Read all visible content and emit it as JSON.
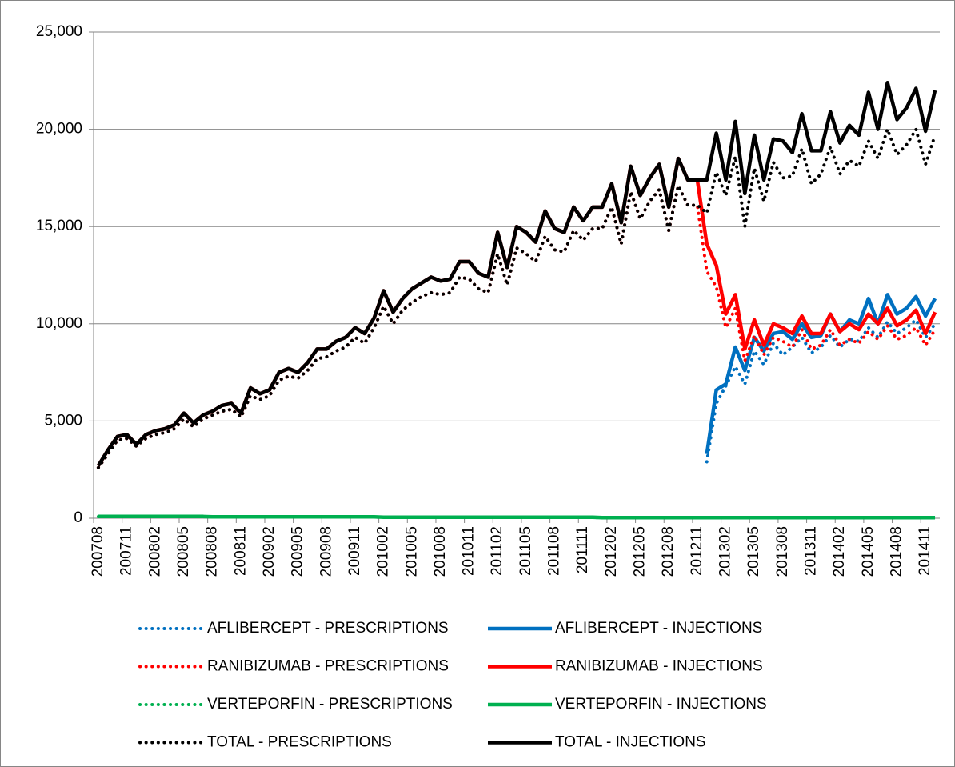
{
  "chart_data": {
    "type": "line",
    "categories": [
      "200708",
      null,
      null,
      "200711",
      null,
      null,
      "200802",
      null,
      null,
      "200805",
      null,
      null,
      "200808",
      null,
      null,
      "200811",
      null,
      null,
      "200902",
      null,
      null,
      "200905",
      null,
      null,
      "200908",
      null,
      null,
      "200911",
      null,
      null,
      "201002",
      null,
      null,
      "201005",
      null,
      null,
      "201008",
      null,
      null,
      "201011",
      null,
      null,
      "201102",
      null,
      null,
      "201105",
      null,
      null,
      "201108",
      null,
      null,
      "201111",
      null,
      null,
      "201202",
      null,
      null,
      "201205",
      null,
      null,
      "201208",
      null,
      null,
      "201211",
      null,
      null,
      "201302",
      null,
      null,
      "201305",
      null,
      null,
      "201308",
      null,
      null,
      "201311",
      null,
      null,
      "201402",
      null,
      null,
      "201405",
      null,
      null,
      "201408",
      null,
      null,
      "201411",
      null
    ],
    "ylim": [
      0,
      25000
    ],
    "yticks": [
      0,
      {
        "value": 5000,
        "label": "5,000"
      },
      {
        "value": 10000,
        "label": "10,000"
      },
      {
        "value": 15000,
        "label": "15,000"
      },
      {
        "value": 20000,
        "label": "20,000"
      },
      {
        "value": 25000,
        "label": "25,000"
      }
    ],
    "grid": true,
    "legend": "bottom",
    "series": [
      {
        "name": "AFLIBERCEPT - PRESCRIPTIONS",
        "color": "#0070c0",
        "line_style": "dotted",
        "values": [
          null,
          null,
          null,
          null,
          null,
          null,
          null,
          null,
          null,
          null,
          null,
          null,
          null,
          null,
          null,
          null,
          null,
          null,
          null,
          null,
          null,
          null,
          null,
          null,
          null,
          null,
          null,
          null,
          null,
          null,
          null,
          null,
          null,
          null,
          null,
          null,
          null,
          null,
          null,
          null,
          null,
          null,
          null,
          null,
          null,
          null,
          null,
          null,
          null,
          null,
          null,
          null,
          null,
          null,
          null,
          null,
          null,
          null,
          null,
          null,
          null,
          null,
          null,
          null,
          2900,
          5900,
          6800,
          7800,
          6900,
          8600,
          7900,
          9000,
          8400,
          8800,
          9300,
          8500,
          8800,
          9400,
          8800,
          9200,
          9100,
          9800,
          9300,
          10100,
          9500,
          9800,
          10200,
          9300,
          10000
        ]
      },
      {
        "name": "AFLIBERCEPT - INJECTIONS",
        "color": "#0070c0",
        "line_style": "solid",
        "values": [
          null,
          null,
          null,
          null,
          null,
          null,
          null,
          null,
          null,
          null,
          null,
          null,
          null,
          null,
          null,
          null,
          null,
          null,
          null,
          null,
          null,
          null,
          null,
          null,
          null,
          null,
          null,
          null,
          null,
          null,
          null,
          null,
          null,
          null,
          null,
          null,
          null,
          null,
          null,
          null,
          null,
          null,
          null,
          null,
          null,
          null,
          null,
          null,
          null,
          null,
          null,
          null,
          null,
          null,
          null,
          null,
          null,
          null,
          null,
          null,
          null,
          null,
          null,
          null,
          3300,
          6600,
          6900,
          8800,
          7600,
          9300,
          8600,
          9500,
          9600,
          9200,
          10000,
          9300,
          9400,
          10500,
          9600,
          10200,
          10000,
          11300,
          10000,
          11500,
          10500,
          10800,
          11400,
          10400,
          11300
        ]
      },
      {
        "name": "RANIBIZUMAB - PRESCRIPTIONS",
        "color": "#ff0000",
        "line_style": "dotted",
        "values": [
          2600,
          3300,
          4000,
          4100,
          3700,
          4100,
          4300,
          4400,
          4600,
          5100,
          4700,
          5100,
          5300,
          5500,
          5600,
          5200,
          6300,
          6100,
          6300,
          7100,
          7300,
          7200,
          7600,
          8200,
          8300,
          8600,
          8800,
          9300,
          9000,
          9800,
          10900,
          10000,
          10700,
          11100,
          11400,
          11600,
          11500,
          11600,
          12400,
          12300,
          11800,
          11600,
          13600,
          12000,
          13900,
          13600,
          13200,
          14500,
          13800,
          13700,
          14800,
          14300,
          14900,
          14900,
          16000,
          14100,
          16800,
          15400,
          16300,
          16900,
          14800,
          17100,
          16100,
          16100,
          12700,
          11900,
          9800,
          10800,
          8100,
          9400,
          8400,
          9300,
          9100,
          8800,
          9700,
          8700,
          8900,
          9700,
          8900,
          9200,
          9000,
          9600,
          9200,
          9900,
          9200,
          9400,
          9800,
          8900,
          9700
        ]
      },
      {
        "name": "RANIBIZUMAB - INJECTIONS",
        "color": "#ff0000",
        "line_style": "solid",
        "values": [
          2700,
          3500,
          4200,
          4300,
          3800,
          4300,
          4500,
          4600,
          4800,
          5400,
          4900,
          5300,
          5500,
          5800,
          5900,
          5400,
          6700,
          6400,
          6600,
          7500,
          7700,
          7500,
          8000,
          8700,
          8700,
          9100,
          9300,
          9800,
          9500,
          10300,
          11700,
          10600,
          11300,
          11800,
          12100,
          12400,
          12200,
          12300,
          13200,
          13200,
          12600,
          12400,
          14700,
          12900,
          15000,
          14700,
          14200,
          15800,
          14900,
          14700,
          16000,
          15300,
          16000,
          16000,
          17200,
          15200,
          18100,
          16600,
          17500,
          18200,
          16000,
          18500,
          17400,
          17400,
          14100,
          13000,
          10500,
          11500,
          8700,
          10200,
          8900,
          10000,
          9800,
          9500,
          10400,
          9500,
          9500,
          10500,
          9600,
          10000,
          9700,
          10500,
          10000,
          10800,
          9900,
          10200,
          10700,
          9500,
          10600
        ]
      },
      {
        "name": "VERTEPORFIN - PRESCRIPTIONS",
        "color": "#00b050",
        "line_style": "dotted",
        "values": [
          80,
          80,
          80,
          80,
          80,
          80,
          80,
          80,
          80,
          80,
          80,
          80,
          60,
          60,
          60,
          60,
          60,
          60,
          60,
          60,
          60,
          60,
          60,
          60,
          60,
          60,
          60,
          60,
          60,
          60,
          40,
          40,
          40,
          40,
          40,
          40,
          40,
          40,
          40,
          40,
          40,
          40,
          40,
          40,
          40,
          40,
          40,
          40,
          40,
          40,
          40,
          40,
          40,
          20,
          20,
          20,
          20,
          20,
          20,
          20,
          20,
          20,
          20,
          20,
          20,
          20,
          20,
          20,
          20,
          20,
          20,
          20,
          20,
          20,
          20,
          20,
          20,
          20,
          20,
          20,
          20,
          20,
          20,
          20,
          20,
          20,
          20,
          20,
          20
        ]
      },
      {
        "name": "VERTEPORFIN - INJECTIONS",
        "color": "#00b050",
        "line_style": "solid",
        "values": [
          90,
          90,
          90,
          90,
          90,
          90,
          90,
          90,
          90,
          90,
          90,
          90,
          70,
          70,
          70,
          70,
          70,
          70,
          70,
          70,
          70,
          70,
          70,
          70,
          70,
          70,
          70,
          70,
          70,
          70,
          50,
          50,
          50,
          50,
          50,
          50,
          50,
          50,
          50,
          50,
          50,
          50,
          50,
          50,
          50,
          50,
          50,
          50,
          50,
          50,
          50,
          50,
          50,
          30,
          30,
          30,
          30,
          30,
          30,
          30,
          30,
          30,
          30,
          30,
          30,
          30,
          30,
          30,
          30,
          30,
          30,
          30,
          30,
          30,
          30,
          30,
          30,
          30,
          30,
          30,
          30,
          30,
          30,
          30,
          30,
          30,
          30,
          30,
          30
        ]
      },
      {
        "name": "TOTAL - PRESCRIPTIONS",
        "color": "#000000",
        "line_style": "dotted",
        "values": [
          2600,
          3300,
          4000,
          4100,
          3700,
          4100,
          4300,
          4400,
          4600,
          5100,
          4700,
          5100,
          5300,
          5500,
          5600,
          5200,
          6300,
          6100,
          6300,
          7100,
          7300,
          7200,
          7600,
          8200,
          8300,
          8600,
          8800,
          9300,
          9000,
          9800,
          10900,
          10000,
          10700,
          11100,
          11400,
          11600,
          11500,
          11600,
          12400,
          12300,
          11800,
          11600,
          13600,
          12000,
          13900,
          13600,
          13200,
          14500,
          13800,
          13700,
          14800,
          14300,
          14900,
          14900,
          16000,
          14100,
          16800,
          15400,
          16300,
          16900,
          14800,
          17100,
          16100,
          16100,
          15700,
          17800,
          16600,
          18600,
          15000,
          18000,
          16300,
          18300,
          17500,
          17600,
          19000,
          17200,
          17700,
          19100,
          17700,
          18400,
          18100,
          19400,
          18500,
          20000,
          18700,
          19200,
          20000,
          18200,
          19700
        ]
      },
      {
        "name": "TOTAL - INJECTIONS",
        "color": "#000000",
        "line_style": "solid",
        "values": [
          2700,
          3500,
          4200,
          4300,
          3800,
          4300,
          4500,
          4600,
          4800,
          5400,
          4900,
          5300,
          5500,
          5800,
          5900,
          5400,
          6700,
          6400,
          6600,
          7500,
          7700,
          7500,
          8000,
          8700,
          8700,
          9100,
          9300,
          9800,
          9500,
          10300,
          11700,
          10600,
          11300,
          11800,
          12100,
          12400,
          12200,
          12300,
          13200,
          13200,
          12600,
          12400,
          14700,
          12900,
          15000,
          14700,
          14200,
          15800,
          14900,
          14700,
          16000,
          15300,
          16000,
          16000,
          17200,
          15200,
          18100,
          16600,
          17500,
          18200,
          16000,
          18500,
          17400,
          17400,
          17400,
          19800,
          17400,
          20400,
          16700,
          19700,
          17400,
          19500,
          19400,
          18800,
          20800,
          18900,
          18900,
          20900,
          19300,
          20200,
          19700,
          21900,
          20000,
          22400,
          20500,
          21100,
          22100,
          19900,
          22000
        ]
      }
    ]
  }
}
